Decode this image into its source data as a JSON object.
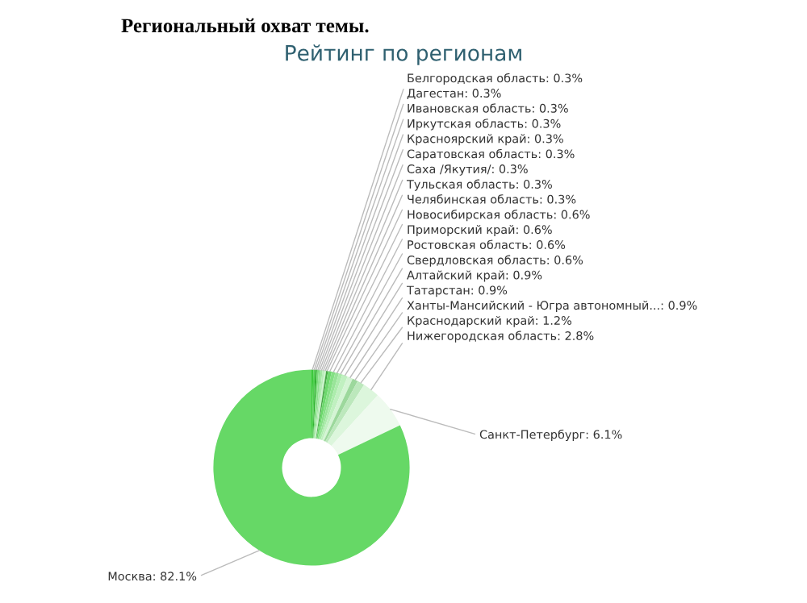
{
  "chart_data": {
    "type": "donut",
    "title": "Региональный охват темы.",
    "subtitle": "Рейтинг по регионам",
    "categories": [
      "Белгородская область",
      "Дагестан",
      "Ивановская область",
      "Иркутская область",
      "Красноярский край",
      "Саратовская область",
      "Саха /Якутия/",
      "Тульская область",
      "Челябинская область",
      "Новосибирская область",
      "Приморский край",
      "Ростовская область",
      "Свердловская область",
      "Алтайский край",
      "Татарстан",
      "Ханты-Мансийский - Югра автономный...",
      "Краснодарский край",
      "Нижегородская область",
      "Санкт-Петербург",
      "Москва"
    ],
    "values": [
      0.3,
      0.3,
      0.3,
      0.3,
      0.3,
      0.3,
      0.3,
      0.3,
      0.3,
      0.6,
      0.6,
      0.6,
      0.6,
      0.9,
      0.9,
      0.9,
      1.2,
      2.8,
      6.1,
      82.1
    ],
    "value_labels": [
      "0.3%",
      "0.3%",
      "0.3%",
      "0.3%",
      "0.3%",
      "0.3%",
      "0.3%",
      "0.3%",
      "0.3%",
      "0.6%",
      "0.6%",
      "0.6%",
      "0.6%",
      "0.9%",
      "0.9%",
      "0.9%",
      "1.2%",
      "2.8%",
      "6.1%",
      "82.1%"
    ],
    "colors": [
      "#3cc83c",
      "#50d050",
      "#2fb02f",
      "#78dc78",
      "#8ce08c",
      "#a0e6a0",
      "#b4ecb4",
      "#c8f2c8",
      "#48a848",
      "#6cd86c",
      "#84e084",
      "#98e498",
      "#acecac",
      "#c0f0c0",
      "#d4f4d4",
      "#9cd89c",
      "#bce8bc",
      "#dcf6dc",
      "#eefaee",
      "#66d866"
    ]
  }
}
